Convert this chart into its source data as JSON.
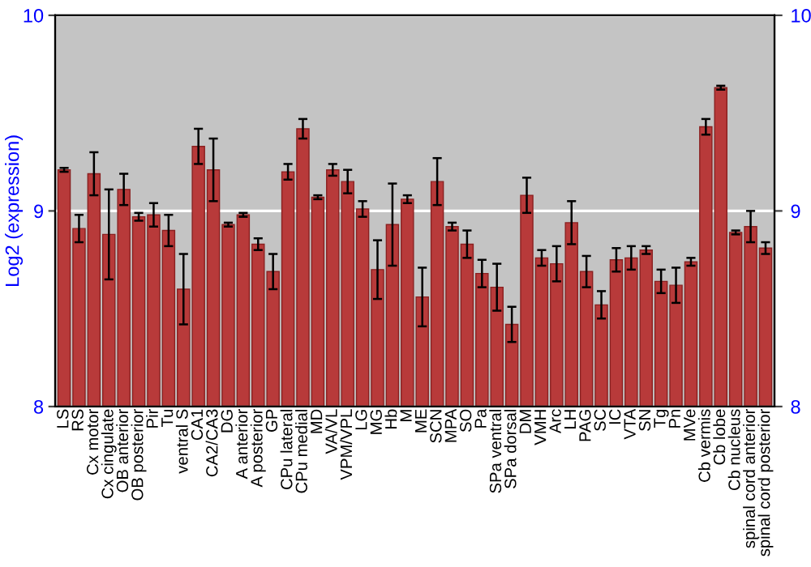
{
  "chart_data": {
    "type": "bar",
    "ylabel": "Log2 (expression)",
    "categories": [
      "LS",
      "RS",
      "Cx motor",
      "Cx cingulate",
      "OB anterior",
      "OB posterior",
      "Pir",
      "Tu",
      "ventral S",
      "CA1",
      "CA2/CA3",
      "DG",
      "A anterior",
      "A posterior",
      "GP",
      "CPu lateral",
      "CPu medial",
      "MD",
      "VA/VL",
      "VPM/VPL",
      "LG",
      "MG",
      "Hb",
      "M",
      "ME",
      "SCN",
      "MPA",
      "SO",
      "Pa",
      "SPa ventral",
      "SPa dorsal",
      "DM",
      "VMH",
      "Arc",
      "LH",
      "PAG",
      "SC",
      "IC",
      "VTA",
      "SN",
      "Tg",
      "Pn",
      "MVe",
      "Cb vermis",
      "Cb lobe",
      "Cb nucleus",
      "spinal cord anterior",
      "spinal cord posterior"
    ],
    "values": [
      9.21,
      8.91,
      9.19,
      8.88,
      9.11,
      8.97,
      8.98,
      8.9,
      8.6,
      9.33,
      9.21,
      8.93,
      8.98,
      8.83,
      8.69,
      9.2,
      9.42,
      9.07,
      9.21,
      9.15,
      9.01,
      8.7,
      8.93,
      9.06,
      8.56,
      9.15,
      8.92,
      8.83,
      8.68,
      8.61,
      8.42,
      9.08,
      8.76,
      8.73,
      8.94,
      8.69,
      8.52,
      8.75,
      8.76,
      8.8,
      8.64,
      8.62,
      8.74,
      9.43,
      9.63,
      8.89,
      8.92,
      8.81
    ],
    "errors": [
      0.01,
      0.07,
      0.11,
      0.23,
      0.08,
      0.02,
      0.06,
      0.08,
      0.18,
      0.09,
      0.16,
      0.01,
      0.01,
      0.03,
      0.09,
      0.04,
      0.05,
      0.01,
      0.03,
      0.06,
      0.04,
      0.15,
      0.21,
      0.02,
      0.15,
      0.12,
      0.02,
      0.07,
      0.07,
      0.12,
      0.09,
      0.09,
      0.04,
      0.09,
      0.11,
      0.08,
      0.07,
      0.06,
      0.06,
      0.02,
      0.06,
      0.09,
      0.02,
      0.04,
      0.01,
      0.01,
      0.08,
      0.03
    ],
    "color": "#b83a3a",
    "ylim": [
      8,
      10
    ],
    "yticks": [
      8,
      9,
      10
    ],
    "y2lim": [
      8,
      10
    ],
    "y2ticks": [
      8,
      9,
      10
    ],
    "grid": "y"
  }
}
